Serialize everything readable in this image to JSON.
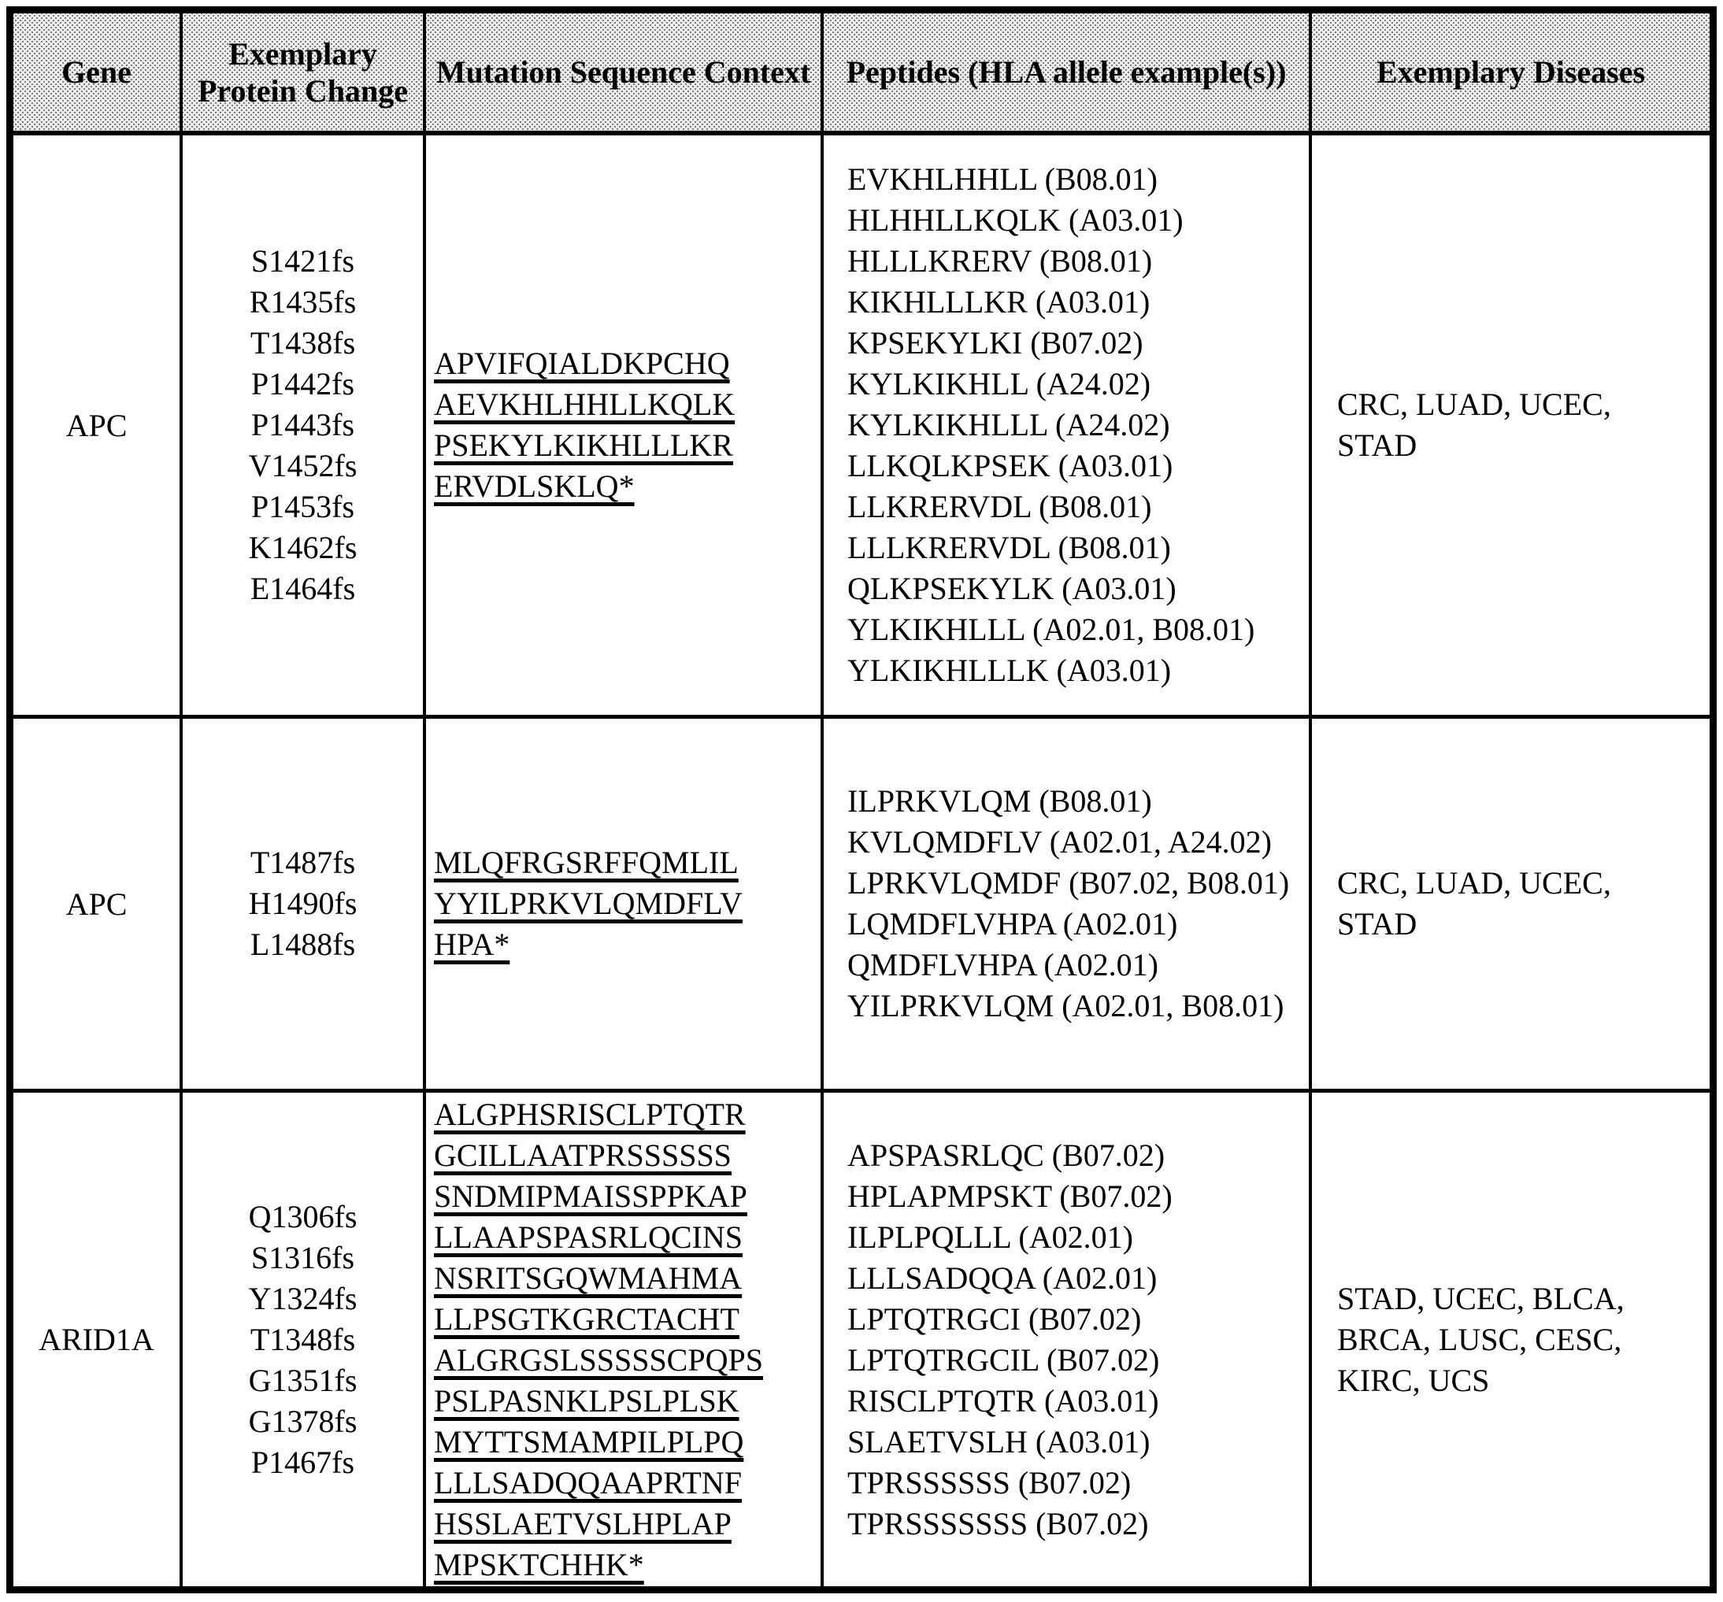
{
  "table": {
    "headers": [
      "Gene",
      "Exemplary Protein Change",
      "Mutation Sequence Context",
      "Peptides (HLA allele example(s))",
      "Exemplary Diseases"
    ],
    "rows": [
      {
        "gene": "APC",
        "protein_changes": [
          "S1421fs",
          "R1435fs",
          "T1438fs",
          "P1442fs",
          "P1443fs",
          "V1452fs",
          "P1453fs",
          "K1462fs",
          "E1464fs"
        ],
        "mutation_context_lines": [
          "APVIFQIALDKPCHQ",
          "AEVKHLHHLLKQLK",
          "PSEKYLKIKHLLLKR",
          "ERVDLSKLQ*"
        ],
        "peptides": [
          "EVKHLHHLL (B08.01)",
          "HLHHLLKQLK (A03.01)",
          "HLLLKRERV (B08.01)",
          "KIKHLLLKR (A03.01)",
          "KPSEKYLKI (B07.02)",
          "KYLKIKHLL (A24.02)",
          "KYLKIKHLLL (A24.02)",
          "LLKQLKPSEK (A03.01)",
          "LLKRERVDL (B08.01)",
          "LLLKRERVDL (B08.01)",
          "QLKPSEKYLK (A03.01)",
          "YLKIKHLLL (A02.01, B08.01)",
          "YLKIKHLLLK (A03.01)"
        ],
        "diseases": "CRC, LUAD, UCEC, STAD"
      },
      {
        "gene": "APC",
        "protein_changes": [
          "T1487fs",
          "H1490fs",
          "L1488fs"
        ],
        "mutation_context_lines": [
          "MLQFRGSRFFQMLIL",
          "YYILPRKVLQMDFLV",
          "HPA*"
        ],
        "peptides": [
          "ILPRKVLQM (B08.01)",
          "KVLQMDFLV (A02.01, A24.02)",
          "LPRKVLQMDF (B07.02, B08.01)",
          "LQMDFLVHPA (A02.01)",
          "QMDFLVHPA (A02.01)",
          "YILPRKVLQM (A02.01, B08.01)"
        ],
        "diseases": "CRC, LUAD, UCEC, STAD"
      },
      {
        "gene": "ARID1A",
        "protein_changes": [
          "Q1306fs",
          "S1316fs",
          "Y1324fs",
          "T1348fs",
          "G1351fs",
          "G1378fs",
          "P1467fs"
        ],
        "mutation_context_lines": [
          "ALGPHSRISCLPTQTR",
          "GCILLAATPRSSSSSS",
          "SNDMIPMAISSPPKAP",
          "LLAAPSPASRLQCINS",
          "NSRITSGQWMAHMA",
          "LLPSGTKGRCTACHT",
          "ALGRGSLSSSSSCPQPS",
          "PSLPASNKLPSLPLSK",
          "MYTTSMAMPILPLPQ",
          "LLLSADQQAAPRTNF",
          "HSSLAETVSLHPLAP",
          "MPSKTCHHK*"
        ],
        "peptides": [
          "APSPASRLQC (B07.02)",
          "HPLAPMPSKT (B07.02)",
          "ILPLPQLLL (A02.01)",
          "LLLSADQQA (A02.01)",
          "LPTQTRGCI (B07.02)",
          "LPTQTRGCIL (B07.02)",
          "RISCLPTQTR (A03.01)",
          "SLAETVSLH (A03.01)",
          "TPRSSSSSS (B07.02)",
          "TPRSSSSSSS (B07.02)"
        ],
        "diseases": "STAD, UCEC, BLCA, BRCA, LUSC, CESC, KIRC, UCS"
      }
    ]
  }
}
